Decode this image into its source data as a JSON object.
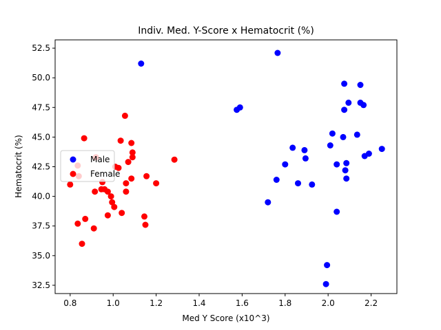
{
  "chart_data": {
    "type": "scatter",
    "title": "Indiv. Med. Y-Score x Hematocrit (%)",
    "xlabel": "Med Y Score (x10^3)",
    "ylabel": "Hematocrit (%)",
    "xlim": [
      0.73,
      2.32
    ],
    "ylim": [
      31.8,
      53.2
    ],
    "xticks": [
      0.8,
      1.0,
      1.2,
      1.4,
      1.6,
      1.8,
      2.0,
      2.2
    ],
    "xtick_labels": [
      "0.8",
      "1.0",
      "1.2",
      "1.4",
      "1.6",
      "1.8",
      "2.0",
      "2.2"
    ],
    "yticks": [
      32.5,
      35.0,
      37.5,
      40.0,
      42.5,
      45.0,
      47.5,
      50.0,
      52.5
    ],
    "ytick_labels": [
      "32.5",
      "35.0",
      "37.5",
      "40.0",
      "42.5",
      "45.0",
      "47.5",
      "50.0",
      "52.5"
    ],
    "grid": false,
    "legend_position": "center-left",
    "series": [
      {
        "name": "Male",
        "color": "#0000ff",
        "points": [
          [
            1.13,
            51.2
          ],
          [
            1.765,
            52.1
          ],
          [
            1.575,
            47.3
          ],
          [
            1.59,
            47.5
          ],
          [
            2.075,
            49.5
          ],
          [
            2.15,
            49.4
          ],
          [
            2.095,
            47.9
          ],
          [
            2.15,
            47.9
          ],
          [
            2.165,
            47.7
          ],
          [
            2.075,
            47.3
          ],
          [
            2.02,
            45.3
          ],
          [
            2.135,
            45.2
          ],
          [
            2.07,
            45.0
          ],
          [
            2.01,
            44.3
          ],
          [
            1.835,
            44.1
          ],
          [
            1.89,
            43.9
          ],
          [
            2.19,
            43.6
          ],
          [
            2.17,
            43.4
          ],
          [
            2.25,
            44.0
          ],
          [
            1.895,
            43.2
          ],
          [
            1.8,
            42.7
          ],
          [
            2.04,
            42.7
          ],
          [
            2.085,
            42.8
          ],
          [
            2.08,
            42.2
          ],
          [
            2.085,
            41.5
          ],
          [
            1.76,
            41.4
          ],
          [
            1.86,
            41.1
          ],
          [
            1.925,
            41.0
          ],
          [
            1.72,
            39.5
          ],
          [
            2.04,
            38.7
          ],
          [
            1.995,
            34.2
          ],
          [
            1.99,
            32.6
          ]
        ]
      },
      {
        "name": "Female",
        "color": "#ff0000",
        "points": [
          [
            0.865,
            44.9
          ],
          [
            1.055,
            46.8
          ],
          [
            1.035,
            44.7
          ],
          [
            1.085,
            44.5
          ],
          [
            1.09,
            43.7
          ],
          [
            1.09,
            43.3
          ],
          [
            1.07,
            42.9
          ],
          [
            0.92,
            43.3
          ],
          [
            0.835,
            42.6
          ],
          [
            1.01,
            42.5
          ],
          [
            1.025,
            42.4
          ],
          [
            1.285,
            43.1
          ],
          [
            0.84,
            41.7
          ],
          [
            0.8,
            41.0
          ],
          [
            0.95,
            41.2
          ],
          [
            1.06,
            41.1
          ],
          [
            1.085,
            41.5
          ],
          [
            1.155,
            41.7
          ],
          [
            1.2,
            41.1
          ],
          [
            0.945,
            40.6
          ],
          [
            0.96,
            40.6
          ],
          [
            0.975,
            40.4
          ],
          [
            0.915,
            40.4
          ],
          [
            1.06,
            40.4
          ],
          [
            0.99,
            40.0
          ],
          [
            0.995,
            39.5
          ],
          [
            1.005,
            39.1
          ],
          [
            1.04,
            38.6
          ],
          [
            0.975,
            38.4
          ],
          [
            0.87,
            38.1
          ],
          [
            1.145,
            38.3
          ],
          [
            0.835,
            37.7
          ],
          [
            0.91,
            37.3
          ],
          [
            1.15,
            37.6
          ],
          [
            0.855,
            36.0
          ]
        ]
      }
    ]
  }
}
